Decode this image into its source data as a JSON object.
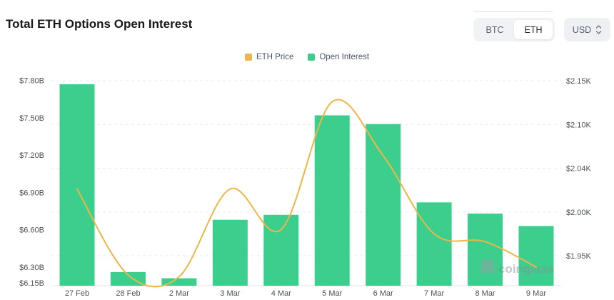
{
  "header": {
    "title": "Total ETH Options Open Interest",
    "coin_toggle": {
      "options": [
        "BTC",
        "ETH"
      ],
      "selected": "ETH"
    },
    "currency_select": {
      "value": "USD"
    }
  },
  "legend": [
    {
      "label": "ETH Price",
      "color": "#EEB648"
    },
    {
      "label": "Open Interest",
      "color": "#3BCE8C"
    }
  ],
  "watermark": {
    "text": "coinglass"
  },
  "chart_data": {
    "type": "bar",
    "title": "Total ETH Options Open Interest",
    "categories": [
      "27 Feb",
      "28 Feb",
      "2 Mar",
      "3 Mar",
      "4 Mar",
      "5 Mar",
      "6 Mar",
      "7 Mar",
      "8 Mar",
      "9 Mar"
    ],
    "series": [
      {
        "name": "Open Interest",
        "type": "bar",
        "axis": "left",
        "unit": "USD billions",
        "color": "#3BCE8C",
        "values": [
          7.77,
          6.26,
          6.21,
          6.68,
          6.72,
          7.52,
          7.45,
          6.82,
          6.73,
          6.63
        ]
      },
      {
        "name": "ETH Price",
        "type": "line",
        "axis": "right",
        "unit": "USD",
        "color": "#EEB648",
        "values": [
          2021,
          1928,
          1926,
          2021,
          1980,
          2126,
          2057,
          1975,
          1966,
          1937
        ]
      }
    ],
    "left_axis": {
      "min": 6.15,
      "max": 7.8,
      "ticks": [
        {
          "label": "$7.80B",
          "value": 7.8
        },
        {
          "label": "$7.50B",
          "value": 7.5
        },
        {
          "label": "$7.20B",
          "value": 7.2
        },
        {
          "label": "$6.90B",
          "value": 6.9
        },
        {
          "label": "$6.60B",
          "value": 6.6
        },
        {
          "label": "$6.30B",
          "value": 6.3
        },
        {
          "label": "$6.15B",
          "value": 6.15
        }
      ]
    },
    "right_axis": {
      "ticks": [
        {
          "label": "$2.15K",
          "value": 2150
        },
        {
          "label": "$2.10K",
          "value": 2100
        },
        {
          "label": "$2.04K",
          "value": 2040
        },
        {
          "label": "$2.00K",
          "value": 2000
        },
        {
          "label": "$1.95K",
          "value": 1950
        }
      ]
    },
    "grid": "dashed horizontal lines aligned to right axis, solid baseline",
    "legend_position": "top center"
  }
}
